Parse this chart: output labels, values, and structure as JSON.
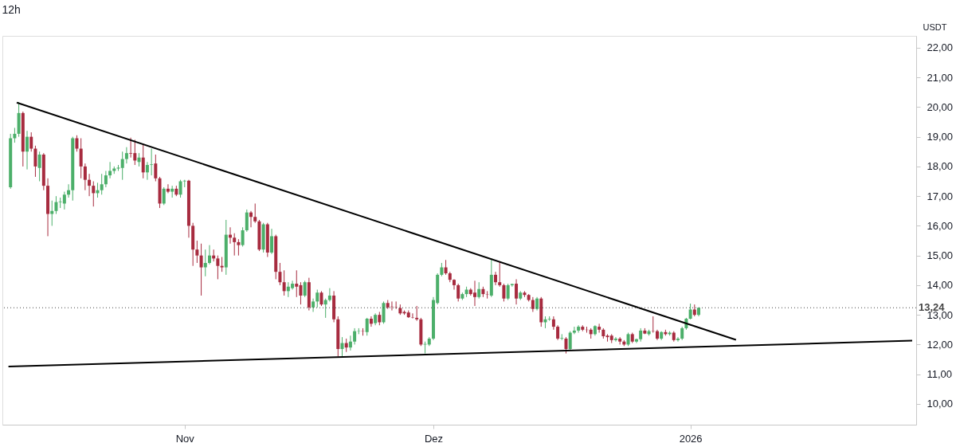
{
  "chart_data": {
    "type": "candlestick",
    "title": "12h",
    "ylabel": "USDT",
    "colors": [
      "#4caf6a",
      "#4caf6a",
      "#4caf6a",
      "#a72b3f",
      "#4caf6a",
      "#a72b3f",
      "#a72b3f",
      "#4caf6a",
      "#a72b3f",
      "#a72b3f",
      "#4caf6a",
      "#4caf6a",
      "#4caf6a",
      "#4caf6a",
      "#4caf6a",
      "#4caf6a",
      "#a72b3f",
      "#a72b3f",
      "#a72b3f",
      "#a72b3f",
      "#a72b3f",
      "#4caf6a",
      "#4caf6a",
      "#4caf6a",
      "#4caf6a",
      "#4caf6a",
      "#4caf6a",
      "#4caf6a",
      "#4caf6a",
      "#a72b3f",
      "#a72b3f",
      "#4caf6a",
      "#a72b3f",
      "#4caf6a",
      "#4caf6a",
      "#a72b3f",
      "#a72b3f",
      "#4caf6a",
      "#a72b3f",
      "#4caf6a",
      "#a72b3f",
      "#4caf6a",
      "#4caf6a",
      "#a72b3f",
      "#a72b3f",
      "#a72b3f",
      "#a72b3f",
      "#4caf6a",
      "#4caf6a",
      "#a72b3f",
      "#a72b3f",
      "#a72b3f",
      "#4caf6a",
      "#a72b3f",
      "#a72b3f",
      "#a72b3f",
      "#4caf6a",
      "#4caf6a",
      "#a72b3f",
      "#a72b3f",
      "#a72b3f",
      "#4caf6a",
      "#a72b3f",
      "#4caf6a",
      "#a72b3f",
      "#a72b3f",
      "#a72b3f",
      "#4caf6a",
      "#4caf6a",
      "#a72b3f",
      "#a72b3f",
      "#4caf6a",
      "#a72b3f",
      "#4caf6a",
      "#4caf6a",
      "#a72b3f",
      "#4caf6a",
      "#4caf6a",
      "#a72b3f",
      "#a72b3f",
      "#4caf6a",
      "#a72b3f",
      "#4caf6a",
      "#4caf6a",
      "#4caf6a",
      "#a72b3f",
      "#4caf6a",
      "#a72b3f",
      "#4caf6a",
      "#a72b3f",
      "#4caf6a",
      "#a72b3f",
      "#a72b3f",
      "#a72b3f",
      "#a72b3f",
      "#a72b3f",
      "#a72b3f",
      "#a72b3f",
      "#a72b3f",
      "#a72b3f",
      "#4caf6a",
      "#4caf6a",
      "#4caf6a",
      "#4caf6a",
      "#4caf6a",
      "#a72b3f",
      "#a72b3f",
      "#a72b3f",
      "#a72b3f",
      "#4caf6a",
      "#4caf6a",
      "#a72b3f",
      "#a72b3f",
      "#4caf6a",
      "#a72b3f",
      "#a72b3f",
      "#4caf6a",
      "#a72b3f",
      "#a72b3f",
      "#a72b3f",
      "#4caf6a",
      "#4caf6a",
      "#a72b3f",
      "#4caf6a",
      "#a72b3f",
      "#a72b3f",
      "#a72b3f",
      "#4caf6a",
      "#a72b3f",
      "#4caf6a",
      "#4caf6a",
      "#a72b3f",
      "#a72b3f",
      "#4caf6a",
      "#a72b3f",
      "#4caf6a",
      "#4caf6a",
      "#4caf6a",
      "#a72b3f",
      "#a72b3f",
      "#a72b3f",
      "#4caf6a",
      "#a72b3f",
      "#a72b3f",
      "#a72b3f",
      "#a72b3f",
      "#4caf6a",
      "#a72b3f",
      "#a72b3f",
      "#4caf6a",
      "#a72b3f",
      "#4caf6a",
      "#4caf6a",
      "#a72b3f",
      "#4caf6a",
      "#a72b3f",
      "#a72b3f",
      "#4caf6a",
      "#a72b3f",
      "#4caf6a",
      "#a72b3f",
      "#4caf6a",
      "#4caf6a",
      "#4caf6a",
      "#4caf6a",
      "#a72b3f",
      "#4caf6a"
    ],
    "x": [
      "2025-10-11T00:00",
      "2025-10-11T12:00",
      "2025-10-12T00:00",
      "2025-10-12T12:00",
      "2025-10-13T00:00",
      "2025-10-13T12:00",
      "2025-10-14T00:00",
      "2025-10-14T12:00",
      "2025-10-15T00:00",
      "2025-10-15T12:00",
      "2025-10-16T00:00",
      "2025-10-16T12:00",
      "2025-10-17T00:00",
      "2025-10-17T12:00",
      "2025-10-18T00:00",
      "2025-10-18T12:00",
      "2025-10-19T00:00",
      "2025-10-19T12:00",
      "2025-10-20T00:00",
      "2025-10-20T12:00",
      "2025-10-21T00:00",
      "2025-10-21T12:00",
      "2025-10-22T00:00",
      "2025-10-22T12:00",
      "2025-10-23T00:00",
      "2025-10-23T12:00",
      "2025-10-24T00:00",
      "2025-10-24T12:00",
      "2025-10-25T00:00",
      "2025-10-25T12:00",
      "2025-10-26T00:00",
      "2025-10-26T12:00",
      "2025-10-27T00:00",
      "2025-10-27T12:00",
      "2025-10-28T00:00",
      "2025-10-28T12:00",
      "2025-10-29T00:00",
      "2025-10-29T12:00",
      "2025-10-30T00:00",
      "2025-10-30T12:00",
      "2025-10-31T00:00",
      "2025-10-31T12:00",
      "2025-11-01T00:00",
      "2025-11-01T12:00",
      "2025-11-02T00:00",
      "2025-11-02T12:00",
      "2025-11-03T00:00",
      "2025-11-03T12:00",
      "2025-11-04T00:00",
      "2025-11-04T12:00",
      "2025-11-05T00:00",
      "2025-11-05T12:00",
      "2025-11-06T00:00",
      "2025-11-06T12:00",
      "2025-11-07T00:00",
      "2025-11-07T12:00",
      "2025-11-08T00:00",
      "2025-11-08T12:00",
      "2025-11-09T00:00",
      "2025-11-09T12:00",
      "2025-11-10T00:00",
      "2025-11-10T12:00",
      "2025-11-11T00:00",
      "2025-11-11T12:00",
      "2025-11-12T00:00",
      "2025-11-12T12:00",
      "2025-11-13T00:00",
      "2025-11-13T12:00",
      "2025-11-14T00:00",
      "2025-11-14T12:00",
      "2025-11-15T00:00",
      "2025-11-15T12:00",
      "2025-11-16T00:00",
      "2025-11-16T12:00",
      "2025-11-17T00:00",
      "2025-11-17T12:00",
      "2025-11-18T00:00",
      "2025-11-18T12:00",
      "2025-11-19T00:00",
      "2025-11-19T12:00",
      "2025-11-20T00:00",
      "2025-11-20T12:00",
      "2025-11-21T00:00",
      "2025-11-21T12:00",
      "2025-11-22T00:00",
      "2025-11-22T12:00",
      "2025-11-23T00:00",
      "2025-11-23T12:00",
      "2025-11-24T00:00",
      "2025-11-24T12:00",
      "2025-11-25T00:00",
      "2025-11-25T12:00",
      "2025-11-26T00:00",
      "2025-11-26T12:00",
      "2025-11-27T00:00",
      "2025-11-27T12:00",
      "2025-11-28T00:00",
      "2025-11-28T12:00",
      "2025-11-29T00:00",
      "2025-11-29T12:00",
      "2025-11-30T00:00",
      "2025-11-30T12:00",
      "2025-12-01T00:00",
      "2025-12-01T12:00",
      "2025-12-02T00:00",
      "2025-12-02T12:00",
      "2025-12-03T00:00",
      "2025-12-03T12:00",
      "2025-12-04T00:00",
      "2025-12-04T12:00",
      "2025-12-05T00:00",
      "2025-12-05T12:00",
      "2025-12-06T00:00",
      "2025-12-06T12:00",
      "2025-12-07T00:00",
      "2025-12-07T12:00",
      "2025-12-08T00:00",
      "2025-12-08T12:00",
      "2025-12-09T00:00",
      "2025-12-09T12:00",
      "2025-12-10T00:00",
      "2025-12-10T12:00",
      "2025-12-11T00:00",
      "2025-12-11T12:00",
      "2025-12-12T00:00",
      "2025-12-12T12:00",
      "2025-12-13T00:00",
      "2025-12-13T12:00",
      "2025-12-14T00:00",
      "2025-12-14T12:00",
      "2025-12-15T00:00",
      "2025-12-15T12:00",
      "2025-12-16T00:00",
      "2025-12-16T12:00",
      "2025-12-17T00:00",
      "2025-12-17T12:00",
      "2025-12-18T00:00",
      "2025-12-18T12:00",
      "2025-12-19T00:00",
      "2025-12-19T12:00",
      "2025-12-20T00:00",
      "2025-12-20T12:00",
      "2025-12-21T00:00",
      "2025-12-21T12:00",
      "2025-12-22T00:00",
      "2025-12-22T12:00",
      "2025-12-23T00:00",
      "2025-12-23T12:00",
      "2025-12-24T00:00",
      "2025-12-24T12:00",
      "2025-12-25T00:00",
      "2025-12-25T12:00",
      "2025-12-26T00:00",
      "2025-12-26T12:00",
      "2025-12-27T00:00",
      "2025-12-27T12:00",
      "2025-12-28T00:00",
      "2025-12-28T12:00",
      "2025-12-29T00:00",
      "2025-12-29T12:00",
      "2025-12-30T00:00",
      "2025-12-30T12:00",
      "2025-12-31T00:00",
      "2025-12-31T12:00",
      "2026-01-01T00:00",
      "2026-01-01T12:00",
      "2026-01-02T00:00"
    ],
    "ohlc": [
      [
        17.3,
        19.1,
        17.25,
        18.95
      ],
      [
        18.95,
        19.3,
        18.8,
        19.1
      ],
      [
        19.1,
        20.17,
        19.0,
        19.8
      ],
      [
        19.8,
        19.85,
        18.0,
        18.5
      ],
      [
        18.5,
        19.2,
        17.9,
        19.0
      ],
      [
        19.0,
        19.15,
        18.5,
        18.6
      ],
      [
        18.6,
        18.7,
        17.65,
        18.0
      ],
      [
        17.95,
        18.5,
        17.5,
        18.4
      ],
      [
        18.4,
        18.45,
        17.2,
        17.35
      ],
      [
        17.35,
        17.6,
        15.65,
        16.4
      ],
      [
        16.4,
        16.85,
        16.0,
        16.5
      ],
      [
        16.5,
        17.0,
        16.4,
        16.8
      ],
      [
        16.8,
        16.95,
        16.6,
        16.82
      ],
      [
        16.75,
        17.15,
        16.55,
        17.05
      ],
      [
        17.05,
        17.4,
        16.95,
        17.2
      ],
      [
        17.2,
        19.0,
        16.85,
        18.95
      ],
      [
        18.95,
        19.05,
        18.5,
        18.6
      ],
      [
        18.6,
        18.95,
        17.6,
        18.0
      ],
      [
        18.0,
        18.1,
        17.2,
        17.55
      ],
      [
        17.55,
        17.75,
        17.0,
        17.35
      ],
      [
        17.35,
        17.5,
        16.65,
        17.1
      ],
      [
        17.1,
        17.45,
        16.95,
        17.2
      ],
      [
        17.2,
        17.75,
        17.05,
        17.4
      ],
      [
        17.4,
        17.85,
        17.3,
        17.7
      ],
      [
        17.7,
        18.15,
        17.6,
        17.85
      ],
      [
        17.85,
        18.0,
        17.75,
        17.93
      ],
      [
        17.93,
        18.05,
        17.85,
        17.96
      ],
      [
        17.95,
        18.5,
        17.55,
        18.25
      ],
      [
        18.25,
        18.65,
        18.1,
        18.45
      ],
      [
        18.45,
        18.97,
        18.3,
        18.43
      ],
      [
        18.45,
        18.9,
        18.05,
        18.2
      ],
      [
        18.15,
        18.45,
        18.0,
        18.3
      ],
      [
        18.3,
        18.75,
        17.6,
        17.8
      ],
      [
        17.8,
        18.15,
        17.55,
        18.05
      ],
      [
        18.05,
        18.6,
        17.7,
        18.07
      ],
      [
        18.1,
        18.4,
        17.5,
        17.6
      ],
      [
        17.6,
        17.65,
        16.6,
        16.75
      ],
      [
        16.75,
        17.3,
        16.7,
        17.25
      ],
      [
        17.25,
        17.4,
        17.1,
        17.15
      ],
      [
        17.15,
        17.35,
        16.95,
        17.25
      ],
      [
        17.25,
        17.35,
        17.0,
        17.05
      ],
      [
        17.05,
        17.55,
        16.95,
        17.5
      ],
      [
        17.5,
        17.55,
        17.3,
        17.52
      ],
      [
        17.52,
        17.55,
        15.6,
        16.0
      ],
      [
        16.0,
        16.1,
        14.65,
        15.2
      ],
      [
        15.2,
        15.5,
        14.75,
        15.0
      ],
      [
        15.0,
        15.4,
        13.65,
        14.6
      ],
      [
        14.6,
        15.2,
        14.3,
        14.75
      ],
      [
        14.75,
        15.35,
        14.7,
        15.0
      ],
      [
        15.0,
        15.2,
        14.8,
        14.9
      ],
      [
        14.9,
        15.0,
        14.2,
        14.65
      ],
      [
        14.65,
        14.95,
        14.45,
        14.6
      ],
      [
        14.6,
        16.2,
        14.35,
        15.7
      ],
      [
        15.7,
        15.95,
        15.4,
        15.6
      ],
      [
        15.6,
        15.75,
        15.0,
        15.45
      ],
      [
        15.45,
        15.55,
        15.0,
        15.35
      ],
      [
        15.35,
        15.95,
        15.3,
        15.85
      ],
      [
        15.85,
        16.55,
        15.8,
        16.45
      ],
      [
        16.45,
        16.5,
        15.95,
        16.3
      ],
      [
        16.3,
        16.75,
        16.1,
        16.15
      ],
      [
        16.15,
        16.2,
        15.15,
        15.2
      ],
      [
        15.2,
        16.1,
        15.1,
        16.05
      ],
      [
        16.05,
        16.1,
        14.95,
        15.1
      ],
      [
        15.1,
        15.9,
        15.05,
        15.65
      ],
      [
        15.65,
        15.7,
        14.2,
        14.45
      ],
      [
        14.45,
        14.75,
        14.0,
        14.1
      ],
      [
        14.1,
        14.5,
        13.65,
        13.8
      ],
      [
        13.8,
        14.1,
        13.6,
        13.95
      ],
      [
        13.9,
        14.15,
        13.85,
        14.05
      ],
      [
        14.05,
        14.5,
        13.6,
        13.95
      ],
      [
        14.0,
        14.1,
        13.35,
        13.65
      ],
      [
        13.65,
        14.15,
        13.6,
        14.1
      ],
      [
        14.1,
        14.25,
        13.15,
        13.25
      ],
      [
        13.25,
        13.55,
        13.1,
        13.45
      ],
      [
        13.45,
        13.85,
        13.25,
        13.75
      ],
      [
        13.75,
        13.8,
        13.3,
        13.35
      ],
      [
        13.35,
        13.55,
        12.9,
        13.5
      ],
      [
        13.5,
        13.9,
        13.45,
        13.65
      ],
      [
        13.65,
        13.8,
        12.75,
        12.85
      ],
      [
        12.85,
        12.95,
        11.6,
        11.85
      ],
      [
        11.85,
        12.25,
        11.6,
        12.05
      ],
      [
        12.05,
        12.2,
        11.75,
        11.9
      ],
      [
        11.9,
        12.3,
        11.8,
        12.1
      ],
      [
        12.1,
        12.55,
        12.0,
        12.45
      ],
      [
        12.45,
        12.55,
        12.35,
        12.46
      ],
      [
        12.46,
        12.55,
        12.3,
        12.45
      ],
      [
        12.42,
        12.9,
        12.3,
        12.87
      ],
      [
        12.87,
        12.95,
        12.6,
        12.7
      ],
      [
        12.72,
        13.05,
        12.65,
        13.0
      ],
      [
        13.0,
        13.1,
        12.65,
        12.75
      ],
      [
        12.75,
        13.45,
        12.7,
        13.4
      ],
      [
        13.4,
        13.5,
        13.2,
        13.25
      ],
      [
        13.28,
        13.45,
        13.15,
        13.27
      ],
      [
        13.26,
        13.45,
        13.2,
        13.25
      ],
      [
        13.23,
        13.35,
        13.0,
        13.05
      ],
      [
        13.1,
        13.15,
        13.0,
        13.05
      ],
      [
        13.08,
        13.15,
        12.9,
        12.92
      ],
      [
        12.92,
        13.05,
        12.88,
        12.91
      ],
      [
        12.9,
        13.3,
        12.8,
        12.85
      ],
      [
        12.85,
        12.9,
        11.95,
        12.0
      ],
      [
        12.0,
        12.1,
        11.7,
        12.02
      ],
      [
        12.0,
        12.25,
        11.95,
        12.2
      ],
      [
        12.2,
        13.6,
        12.15,
        13.5
      ],
      [
        13.4,
        14.4,
        13.35,
        14.35
      ],
      [
        14.35,
        14.75,
        14.3,
        14.6
      ],
      [
        14.6,
        14.85,
        14.35,
        14.4
      ],
      [
        14.4,
        14.45,
        14.1,
        14.18
      ],
      [
        14.18,
        14.2,
        13.85,
        14.0
      ],
      [
        14.0,
        14.05,
        13.45,
        13.55
      ],
      [
        13.55,
        13.75,
        13.5,
        13.7
      ],
      [
        13.7,
        13.95,
        13.6,
        13.85
      ],
      [
        13.85,
        13.9,
        13.65,
        13.7
      ],
      [
        13.75,
        14.15,
        13.3,
        13.6
      ],
      [
        13.6,
        14.1,
        13.55,
        13.87
      ],
      [
        13.87,
        13.95,
        13.6,
        13.7
      ],
      [
        13.7,
        13.8,
        13.55,
        13.69
      ],
      [
        13.65,
        14.9,
        13.6,
        14.35
      ],
      [
        14.35,
        14.45,
        14.0,
        14.1
      ],
      [
        14.1,
        14.8,
        13.95,
        14.0
      ],
      [
        14.0,
        14.05,
        13.45,
        13.55
      ],
      [
        13.55,
        14.05,
        13.5,
        14.0
      ],
      [
        14.0,
        14.05,
        13.95,
        14.04
      ],
      [
        14.05,
        14.2,
        13.35,
        13.55
      ],
      [
        13.55,
        13.8,
        13.5,
        13.75
      ],
      [
        13.75,
        13.8,
        13.6,
        13.67
      ],
      [
        13.67,
        13.7,
        13.45,
        13.5
      ],
      [
        13.5,
        13.6,
        13.1,
        13.2
      ],
      [
        13.2,
        13.6,
        13.15,
        13.55
      ],
      [
        13.55,
        13.6,
        12.6,
        12.75
      ],
      [
        12.75,
        12.95,
        12.55,
        12.85
      ],
      [
        12.85,
        12.95,
        12.8,
        12.87
      ],
      [
        12.85,
        12.95,
        12.5,
        12.6
      ],
      [
        12.6,
        12.65,
        12.15,
        12.2
      ],
      [
        12.2,
        12.35,
        12.15,
        12.22
      ],
      [
        12.2,
        12.25,
        11.7,
        11.85
      ],
      [
        11.85,
        12.45,
        11.8,
        12.4
      ],
      [
        12.4,
        12.6,
        12.35,
        12.47
      ],
      [
        12.47,
        12.65,
        12.4,
        12.6
      ],
      [
        12.6,
        12.65,
        12.45,
        12.5
      ],
      [
        12.5,
        12.6,
        12.4,
        12.49
      ],
      [
        12.5,
        12.55,
        12.2,
        12.35
      ],
      [
        12.35,
        12.65,
        12.3,
        12.62
      ],
      [
        12.6,
        12.7,
        12.4,
        12.5
      ],
      [
        12.5,
        12.55,
        12.2,
        12.28
      ],
      [
        12.3,
        12.35,
        12.1,
        12.25
      ],
      [
        12.3,
        12.35,
        12.05,
        12.15
      ],
      [
        12.15,
        12.25,
        12.1,
        12.2
      ],
      [
        12.2,
        12.25,
        12.0,
        12.1
      ],
      [
        12.1,
        12.15,
        11.95,
        12.0
      ],
      [
        12.0,
        12.4,
        11.95,
        12.35
      ],
      [
        12.35,
        12.4,
        12.05,
        12.1
      ],
      [
        12.1,
        12.2,
        12.05,
        12.18
      ],
      [
        12.18,
        12.55,
        12.1,
        12.47
      ],
      [
        12.47,
        12.55,
        12.35,
        12.37
      ],
      [
        12.35,
        12.5,
        12.3,
        12.45
      ],
      [
        12.45,
        12.95,
        12.4,
        12.44
      ],
      [
        12.45,
        12.5,
        12.15,
        12.2
      ],
      [
        12.2,
        12.45,
        12.15,
        12.42
      ],
      [
        12.42,
        12.5,
        12.3,
        12.35
      ],
      [
        12.35,
        12.45,
        12.3,
        12.4
      ],
      [
        12.4,
        12.45,
        12.1,
        12.15
      ],
      [
        12.15,
        12.25,
        12.1,
        12.2
      ],
      [
        12.2,
        12.6,
        12.15,
        12.55
      ],
      [
        12.55,
        12.9,
        12.5,
        12.87
      ],
      [
        12.87,
        13.38,
        12.85,
        13.18
      ],
      [
        13.18,
        13.35,
        12.95,
        13.0
      ],
      [
        13.0,
        13.25,
        12.95,
        13.24
      ]
    ],
    "series": [
      {
        "type": "line",
        "x": [
          "2025-10-11T18:00",
          "2026-01-06T12:00"
        ],
        "values": [
          20.15,
          12.16
        ],
        "color": "#000000"
      },
      {
        "type": "line",
        "x": [
          "2025-10-10T18:00",
          "2026-01-27T18:00"
        ],
        "values": [
          11.26,
          12.13
        ],
        "color": "#000000"
      }
    ],
    "xlim": [
      "2025-10-10T12:00",
      "2026-01-27T18:00"
    ],
    "xticks": [
      {
        "value": "2025-11-01",
        "label": "Nov"
      },
      {
        "value": "2025-12-01",
        "label": "Dez"
      },
      {
        "value": "2026-01-01",
        "label": "2026"
      }
    ],
    "ylim": [
      9.3,
      22.4
    ],
    "yticks": [
      {
        "value": 10,
        "label": "10,00"
      },
      {
        "value": 11,
        "label": "11,00"
      },
      {
        "value": 12,
        "label": "12,00"
      },
      {
        "value": 13,
        "label": "13,00"
      },
      {
        "value": 14,
        "label": "14,00"
      },
      {
        "value": 15,
        "label": "15,00"
      },
      {
        "value": 16,
        "label": "16,00"
      },
      {
        "value": 17,
        "label": "17,00"
      },
      {
        "value": 18,
        "label": "18,00"
      },
      {
        "value": 19,
        "label": "19,00"
      },
      {
        "value": 20,
        "label": "20,00"
      },
      {
        "value": 21,
        "label": "21,00"
      },
      {
        "value": 22,
        "label": "22,00"
      }
    ],
    "ref_lines": [
      {
        "axis": "y",
        "value": 13.24,
        "label": "13,24",
        "color": "#444444",
        "line_style": "dotted"
      }
    ],
    "grid": false
  }
}
